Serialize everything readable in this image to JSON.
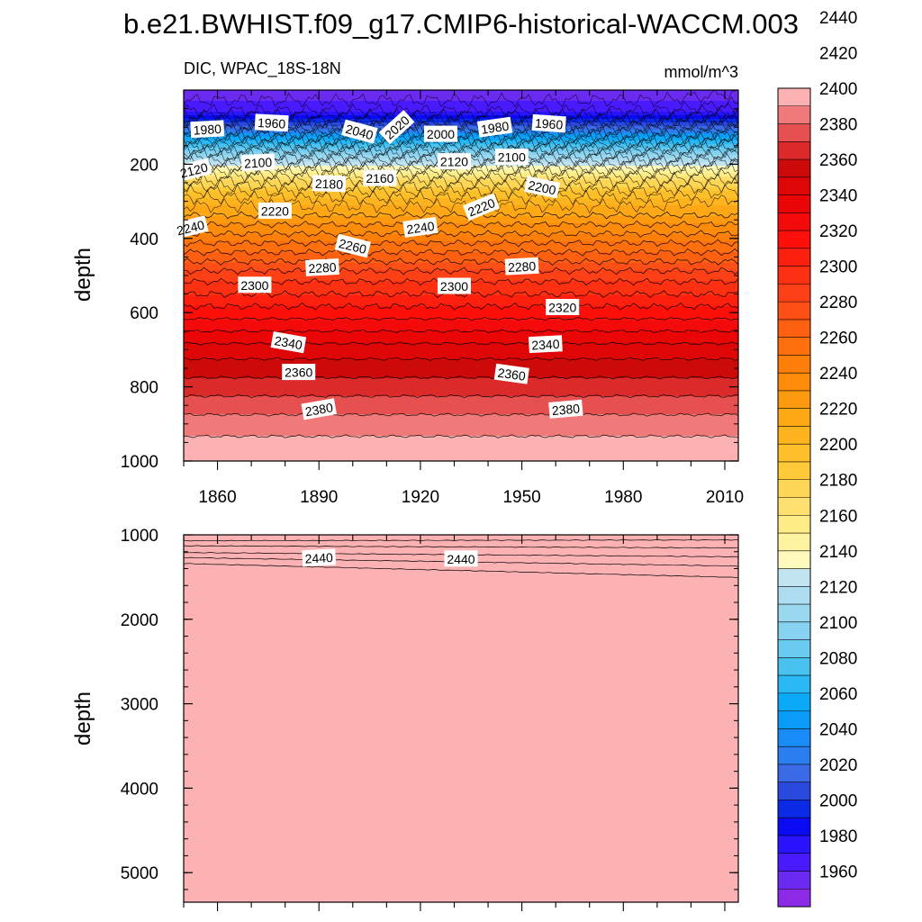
{
  "title": "b.e21.BWHIST.f09_g17.CMIP6-historical-WACCM.003",
  "chart_data": {
    "type": "contour",
    "variable": "DIC",
    "region": "WPAC_18S-18N",
    "left_label": "DIC, WPAC_18S-18N",
    "units": "mmol/m^3",
    "ylabel": "depth",
    "xlim": [
      1850,
      2014
    ],
    "x_ticks": [
      1860,
      1890,
      1920,
      1950,
      1980,
      2010
    ],
    "colorbar": {
      "min": 1950,
      "max": 2450,
      "step": 10,
      "tick_labels": [
        1960,
        1980,
        2000,
        2020,
        2040,
        2060,
        2080,
        2100,
        2120,
        2140,
        2160,
        2180,
        2200,
        2220,
        2240,
        2260,
        2280,
        2300,
        2320,
        2340,
        2360,
        2380,
        2400,
        2420,
        2440
      ],
      "colors": [
        "#8c2ae8",
        "#6a2af0",
        "#4a1aff",
        "#2a14ff",
        "#0a0af5",
        "#0a2ae6",
        "#2a4ade",
        "#3a6ae6",
        "#2a7ef0",
        "#1a8cf8",
        "#0a9af8",
        "#0aaaf8",
        "#2ab8f4",
        "#4ac2f0",
        "#6acaf0",
        "#86d2f0",
        "#9ad8f0",
        "#aedcf0",
        "#c2e4f0",
        "#fefabe",
        "#fef4a0",
        "#feec86",
        "#fee070",
        "#fed656",
        "#feca3a",
        "#fec02a",
        "#feb41e",
        "#fea816",
        "#fe9a10",
        "#fe8c0a",
        "#fe7e0a",
        "#fe700e",
        "#fe6012",
        "#fe5016",
        "#fe4016",
        "#fe3012",
        "#fe200e",
        "#fe100a",
        "#f40a0a",
        "#ea0606",
        "#de0606",
        "#cc0a0a",
        "#da2a2a",
        "#e65050",
        "#f07a7a",
        "#fcb2b2"
      ]
    },
    "upper_panel": {
      "ylim": [
        0,
        1000
      ],
      "y_ticks": [
        200,
        400,
        600,
        800,
        1000
      ],
      "depth_profile": [
        {
          "depth": 5,
          "value": 1955
        },
        {
          "depth": 50,
          "value": 1965
        },
        {
          "depth": 80,
          "value": 1990
        },
        {
          "depth": 120,
          "value": 2040
        },
        {
          "depth": 170,
          "value": 2100
        },
        {
          "depth": 230,
          "value": 2160
        },
        {
          "depth": 280,
          "value": 2195
        },
        {
          "depth": 300,
          "value": 2205
        },
        {
          "depth": 400,
          "value": 2245
        },
        {
          "depth": 500,
          "value": 2285
        },
        {
          "depth": 600,
          "value": 2315
        },
        {
          "depth": 700,
          "value": 2345
        },
        {
          "depth": 800,
          "value": 2365
        },
        {
          "depth": 900,
          "value": 2385
        },
        {
          "depth": 1000,
          "value": 2400
        }
      ],
      "contour_labels": [
        {
          "text": "1980",
          "year": 1857,
          "depth": 105,
          "angle": -3
        },
        {
          "text": "1960",
          "year": 1876,
          "depth": 88,
          "angle": 3
        },
        {
          "text": "2040",
          "year": 1902,
          "depth": 112,
          "angle": 15
        },
        {
          "text": "2020",
          "year": 1913,
          "depth": 100,
          "angle": -42
        },
        {
          "text": "2000",
          "year": 1926,
          "depth": 118,
          "angle": 0
        },
        {
          "text": "1980",
          "year": 1942,
          "depth": 100,
          "angle": -8
        },
        {
          "text": "1960",
          "year": 1958,
          "depth": 90,
          "angle": 4
        },
        {
          "text": "2120",
          "year": 1853,
          "depth": 215,
          "angle": -14
        },
        {
          "text": "2100",
          "year": 1872,
          "depth": 195,
          "angle": -3
        },
        {
          "text": "2120",
          "year": 1930,
          "depth": 192,
          "angle": 0
        },
        {
          "text": "2100",
          "year": 1947,
          "depth": 180,
          "angle": 0
        },
        {
          "text": "2180",
          "year": 1893,
          "depth": 252,
          "angle": 2
        },
        {
          "text": "2160",
          "year": 1908,
          "depth": 237,
          "angle": 0
        },
        {
          "text": "2200",
          "year": 1956,
          "depth": 262,
          "angle": 12
        },
        {
          "text": "2220",
          "year": 1877,
          "depth": 325,
          "angle": 0
        },
        {
          "text": "2220",
          "year": 1938,
          "depth": 315,
          "angle": -22
        },
        {
          "text": "2240",
          "year": 1852,
          "depth": 370,
          "angle": -14
        },
        {
          "text": "2240",
          "year": 1920,
          "depth": 370,
          "angle": -8
        },
        {
          "text": "2260",
          "year": 1900,
          "depth": 420,
          "angle": 14
        },
        {
          "text": "2280",
          "year": 1891,
          "depth": 478,
          "angle": -3
        },
        {
          "text": "2280",
          "year": 1950,
          "depth": 475,
          "angle": -3
        },
        {
          "text": "2300",
          "year": 1871,
          "depth": 525,
          "angle": 0
        },
        {
          "text": "2300",
          "year": 1930,
          "depth": 528,
          "angle": 0
        },
        {
          "text": "2320",
          "year": 1962,
          "depth": 585,
          "angle": 0
        },
        {
          "text": "2340",
          "year": 1881,
          "depth": 680,
          "angle": 10
        },
        {
          "text": "2340",
          "year": 1957,
          "depth": 685,
          "angle": -3
        },
        {
          "text": "2360",
          "year": 1884,
          "depth": 760,
          "angle": 0
        },
        {
          "text": "2360",
          "year": 1947,
          "depth": 765,
          "angle": 8
        },
        {
          "text": "2380",
          "year": 1890,
          "depth": 860,
          "angle": -10
        },
        {
          "text": "2380",
          "year": 1963,
          "depth": 860,
          "angle": -5
        }
      ]
    },
    "lower_panel": {
      "ylim": [
        1000,
        5350
      ],
      "y_ticks": [
        1000,
        2000,
        3000,
        4000,
        5000
      ],
      "band_boundaries": [
        {
          "value": 2410,
          "depth_start": 1070,
          "depth_end": 1060
        },
        {
          "value": 2420,
          "depth_start": 1130,
          "depth_end": 1155
        },
        {
          "value": 2430,
          "depth_start": 1210,
          "depth_end": 1260
        },
        {
          "value": 2440,
          "depth_start": 1270,
          "depth_end": 1370
        },
        {
          "value": 2450,
          "depth_start": 1340,
          "depth_end": 1505
        }
      ],
      "fill_below": "#fcb2b2",
      "contour_labels": [
        {
          "text": "2440",
          "year": 1890,
          "depth": 1270,
          "angle": -3
        },
        {
          "text": "2440",
          "year": 1932,
          "depth": 1280,
          "angle": 0
        }
      ]
    }
  }
}
